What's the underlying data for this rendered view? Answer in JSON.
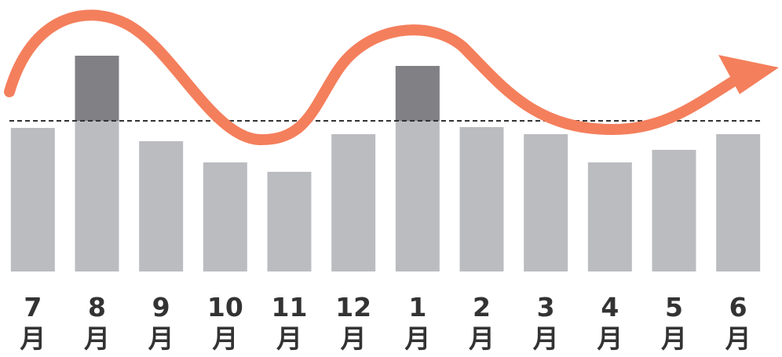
{
  "chart_data": {
    "type": "bar",
    "categories": [
      "7\n月",
      "8\n月",
      "9\n月",
      "10\n月",
      "11\n月",
      "12\n月",
      "1\n月",
      "2\n月",
      "3\n月",
      "4\n月",
      "5\n月",
      "6\n月"
    ],
    "values": [
      183,
      275,
      166,
      139,
      127,
      175,
      262,
      184,
      175,
      139,
      155,
      175
    ],
    "color": "#bbbcc0",
    "highlight_color": "#808085",
    "reference_line": 192,
    "ylim": [
      0,
      300
    ]
  }
}
